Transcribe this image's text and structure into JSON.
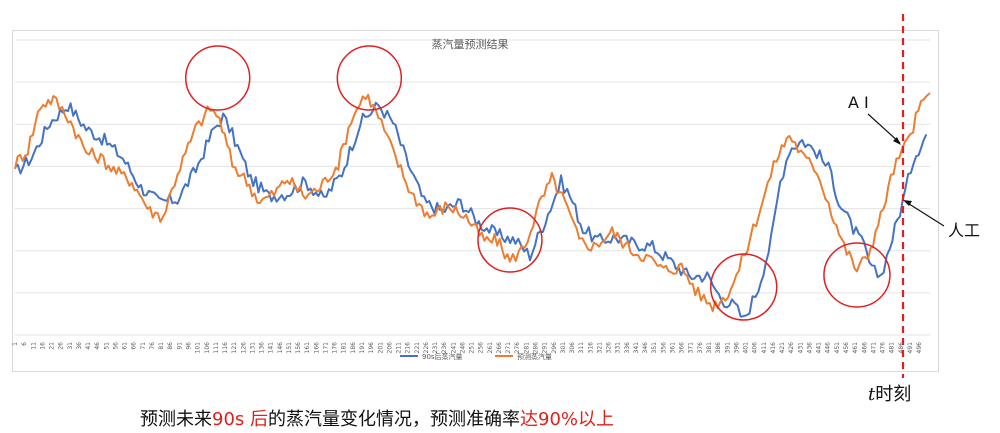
{
  "chart_data": {
    "type": "line",
    "title": "蒸汽量预测结果",
    "x_tick_labels": [
      "1",
      "6",
      "11",
      "16",
      "21",
      "26",
      "31",
      "36",
      "41",
      "46",
      "51",
      "56",
      "61",
      "66",
      "71",
      "76",
      "81",
      "86",
      "91",
      "96",
      "101",
      "106",
      "111",
      "116",
      "121",
      "126",
      "131",
      "136",
      "141",
      "146",
      "151",
      "156",
      "161",
      "166",
      "171",
      "176",
      "181",
      "186",
      "191",
      "196",
      "201",
      "206",
      "211",
      "216",
      "221",
      "226",
      "231",
      "236",
      "241",
      "246",
      "251",
      "256",
      "261",
      "266",
      "271",
      "276",
      "281",
      "286",
      "291",
      "296",
      "301",
      "306",
      "311",
      "316",
      "321",
      "326",
      "331",
      "336",
      "341",
      "346",
      "351",
      "356",
      "361",
      "366",
      "371",
      "376",
      "381",
      "386",
      "391",
      "396",
      "401",
      "406",
      "411",
      "416",
      "421",
      "426",
      "431",
      "436",
      "441",
      "446",
      "451",
      "456",
      "461",
      "466",
      "471",
      "476",
      "481",
      "486",
      "491",
      "496"
    ],
    "series": [
      {
        "name": "90s后蒸汽量",
        "color": "#4472c4",
        "points": [
          [
            1,
            0.55
          ],
          [
            10,
            0.6
          ],
          [
            20,
            0.72
          ],
          [
            30,
            0.78
          ],
          [
            40,
            0.7
          ],
          [
            50,
            0.66
          ],
          [
            60,
            0.6
          ],
          [
            70,
            0.5
          ],
          [
            80,
            0.45
          ],
          [
            90,
            0.46
          ],
          [
            100,
            0.56
          ],
          [
            110,
            0.7
          ],
          [
            115,
            0.74
          ],
          [
            120,
            0.68
          ],
          [
            130,
            0.53
          ],
          [
            140,
            0.47
          ],
          [
            150,
            0.48
          ],
          [
            160,
            0.52
          ],
          [
            170,
            0.46
          ],
          [
            180,
            0.55
          ],
          [
            190,
            0.72
          ],
          [
            200,
            0.78
          ],
          [
            208,
            0.72
          ],
          [
            215,
            0.6
          ],
          [
            225,
            0.45
          ],
          [
            235,
            0.42
          ],
          [
            245,
            0.45
          ],
          [
            255,
            0.38
          ],
          [
            265,
            0.34
          ],
          [
            275,
            0.32
          ],
          [
            283,
            0.27
          ],
          [
            290,
            0.37
          ],
          [
            300,
            0.52
          ],
          [
            305,
            0.47
          ],
          [
            312,
            0.36
          ],
          [
            320,
            0.32
          ],
          [
            330,
            0.33
          ],
          [
            340,
            0.31
          ],
          [
            350,
            0.3
          ],
          [
            360,
            0.25
          ],
          [
            370,
            0.2
          ],
          [
            380,
            0.2
          ],
          [
            388,
            0.12
          ],
          [
            395,
            0.1
          ],
          [
            400,
            0.05
          ],
          [
            408,
            0.16
          ],
          [
            415,
            0.32
          ],
          [
            420,
            0.52
          ],
          [
            425,
            0.63
          ],
          [
            432,
            0.66
          ],
          [
            440,
            0.62
          ],
          [
            448,
            0.55
          ],
          [
            452,
            0.45
          ],
          [
            460,
            0.36
          ],
          [
            466,
            0.3
          ],
          [
            470,
            0.22
          ],
          [
            475,
            0.2
          ],
          [
            480,
            0.3
          ],
          [
            487,
            0.45
          ],
          [
            493,
            0.6
          ],
          [
            500,
            0.68
          ]
        ]
      },
      {
        "name": "预测蒸汽量",
        "color": "#ed7d31",
        "points": [
          [
            1,
            0.58
          ],
          [
            8,
            0.63
          ],
          [
            15,
            0.78
          ],
          [
            22,
            0.8
          ],
          [
            30,
            0.74
          ],
          [
            40,
            0.62
          ],
          [
            48,
            0.6
          ],
          [
            55,
            0.56
          ],
          [
            65,
            0.52
          ],
          [
            75,
            0.42
          ],
          [
            82,
            0.4
          ],
          [
            90,
            0.55
          ],
          [
            100,
            0.7
          ],
          [
            108,
            0.77
          ],
          [
            113,
            0.73
          ],
          [
            120,
            0.58
          ],
          [
            128,
            0.52
          ],
          [
            135,
            0.45
          ],
          [
            143,
            0.48
          ],
          [
            150,
            0.53
          ],
          [
            160,
            0.47
          ],
          [
            168,
            0.5
          ],
          [
            178,
            0.58
          ],
          [
            185,
            0.73
          ],
          [
            193,
            0.82
          ],
          [
            200,
            0.74
          ],
          [
            208,
            0.62
          ],
          [
            218,
            0.48
          ],
          [
            228,
            0.4
          ],
          [
            238,
            0.44
          ],
          [
            248,
            0.4
          ],
          [
            258,
            0.32
          ],
          [
            265,
            0.32
          ],
          [
            272,
            0.25
          ],
          [
            280,
            0.3
          ],
          [
            288,
            0.44
          ],
          [
            295,
            0.53
          ],
          [
            302,
            0.45
          ],
          [
            310,
            0.32
          ],
          [
            318,
            0.3
          ],
          [
            328,
            0.35
          ],
          [
            338,
            0.29
          ],
          [
            348,
            0.26
          ],
          [
            356,
            0.22
          ],
          [
            366,
            0.23
          ],
          [
            375,
            0.14
          ],
          [
            383,
            0.1
          ],
          [
            390,
            0.13
          ],
          [
            396,
            0.2
          ],
          [
            402,
            0.3
          ],
          [
            410,
            0.45
          ],
          [
            418,
            0.6
          ],
          [
            425,
            0.68
          ],
          [
            433,
            0.6
          ],
          [
            440,
            0.56
          ],
          [
            448,
            0.42
          ],
          [
            455,
            0.3
          ],
          [
            462,
            0.22
          ],
          [
            468,
            0.27
          ],
          [
            475,
            0.4
          ],
          [
            482,
            0.56
          ],
          [
            490,
            0.66
          ],
          [
            497,
            0.78
          ],
          [
            502,
            0.82
          ]
        ]
      }
    ],
    "annotations": {
      "label_ai": "A I",
      "label_manual": "人工",
      "t_label_italic": "t",
      "t_label_rest": "时刻",
      "caption_part1": "预测未来",
      "caption_highlight1": "90s 后",
      "caption_part2": "的蒸汽量变化情况，预测准确率",
      "caption_highlight2": "达90%以上"
    },
    "circle_centers_x": [
      112,
      195,
      272,
      400,
      462
    ],
    "grid": true,
    "legend_position": "bottom-center"
  }
}
